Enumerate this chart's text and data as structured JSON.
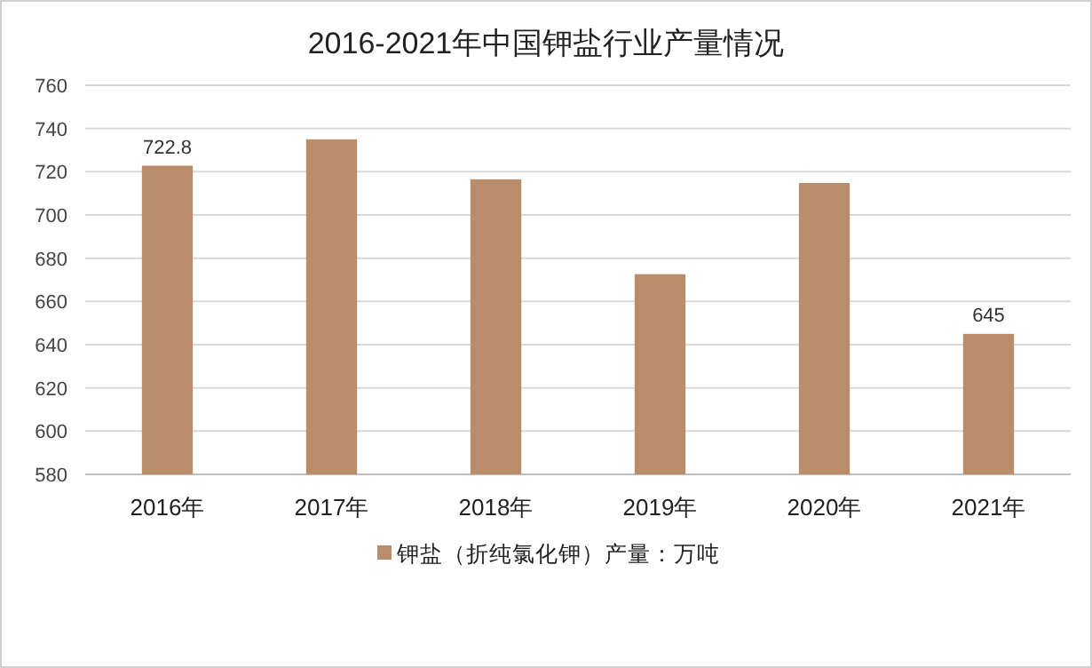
{
  "chart_data": {
    "type": "bar",
    "title": "2016-2021年中国钾盐行业产量情况",
    "categories": [
      "2016年",
      "2017年",
      "2018年",
      "2019年",
      "2020年",
      "2021年"
    ],
    "series": [
      {
        "name": "钾盐（折纯氯化钾）产量：万吨",
        "color": "#b98c6a",
        "values": [
          722.8,
          735,
          716.5,
          672.6,
          714.8,
          645
        ],
        "value_labels": [
          "722.8",
          null,
          null,
          null,
          null,
          "645"
        ]
      }
    ],
    "ylim": [
      580,
      760
    ],
    "yticks": [
      580,
      600,
      620,
      640,
      660,
      680,
      700,
      720,
      740,
      760
    ],
    "grid": "y",
    "legend": "bottom"
  }
}
